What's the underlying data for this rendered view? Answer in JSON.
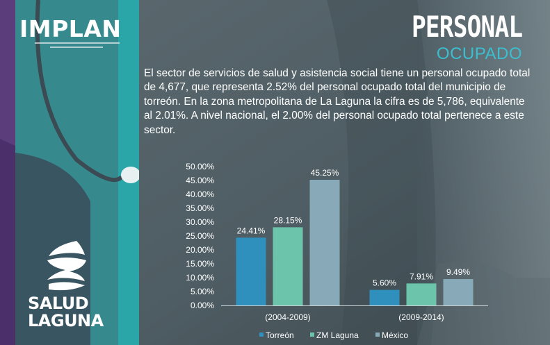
{
  "header": {
    "logo": "IMPLAN",
    "title_line1": "PERSONAL",
    "title_line2": "OCUPADO"
  },
  "paragraph": "El sector de servicios de salud y asistencia social tiene un personal ocupado total de 4,677, que representa 2.52% del personal ocupado total del municipio de torreón. En la zona metropolitana de La Laguna la cifra es de 5,786, equivalente al 2.01%. A nivel nacional, el 2.00% del personal ocupado total pertenece a este sector.",
  "brand": {
    "line1": "SALUD",
    "line2": "LAGUNA"
  },
  "colors": {
    "torreon": "#2f8fbd",
    "zm_laguna": "#6cc4aa",
    "mexico": "#88aab8",
    "accent": "#3bbfd0"
  },
  "chart_data": {
    "type": "bar",
    "categories": [
      "(2004-2009)",
      "(2009-2014)"
    ],
    "series": [
      {
        "name": "Torreón",
        "values": [
          24.41,
          5.6
        ],
        "labels": [
          "24.41%",
          "5.60%"
        ]
      },
      {
        "name": "ZM Laguna",
        "values": [
          28.15,
          7.91
        ],
        "labels": [
          "28.15%",
          "7.91%"
        ]
      },
      {
        "name": "México",
        "values": [
          45.25,
          9.49
        ],
        "labels": [
          "45.25%",
          "9.49%"
        ]
      }
    ],
    "yticks": [
      "0.00%",
      "5.00%",
      "10.00%",
      "15.00%",
      "20.00%",
      "25.00%",
      "30.00%",
      "35.00%",
      "40.00%",
      "45.00%",
      "50.00%"
    ],
    "ylim": [
      0,
      50
    ],
    "legend_position": "bottom",
    "grid": false
  }
}
